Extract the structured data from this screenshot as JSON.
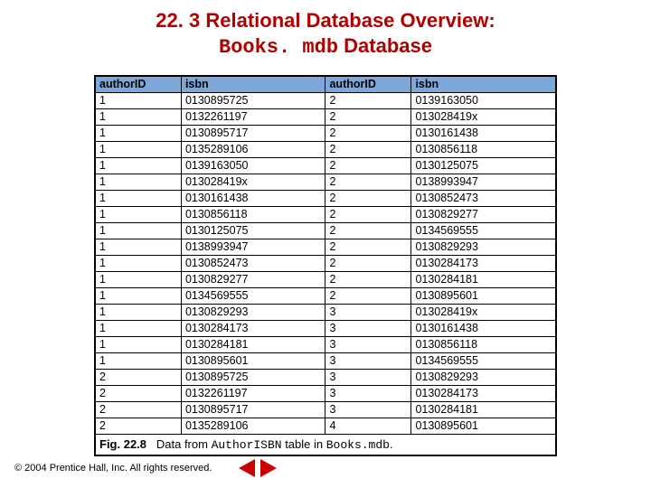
{
  "title": {
    "section": "22. 3",
    "line1_rest": "Relational Database Overview:",
    "line2_mono": "Books. mdb",
    "line2_rest": "Database"
  },
  "table": {
    "headers": [
      "authorID",
      "isbn",
      "authorID",
      "isbn"
    ],
    "rows": [
      [
        "1",
        "0130895725",
        "2",
        "0139163050"
      ],
      [
        "1",
        "0132261197",
        "2",
        "013028419x"
      ],
      [
        "1",
        "0130895717",
        "2",
        "0130161438"
      ],
      [
        "1",
        "0135289106",
        "2",
        "0130856118"
      ],
      [
        "1",
        "0139163050",
        "2",
        "0130125075"
      ],
      [
        "1",
        "013028419x",
        "2",
        "0138993947"
      ],
      [
        "1",
        "0130161438",
        "2",
        "0130852473"
      ],
      [
        "1",
        "0130856118",
        "2",
        "0130829277"
      ],
      [
        "1",
        "0130125075",
        "2",
        "0134569555"
      ],
      [
        "1",
        "0138993947",
        "2",
        "0130829293"
      ],
      [
        "1",
        "0130852473",
        "2",
        "0130284173"
      ],
      [
        "1",
        "0130829277",
        "2",
        "0130284181"
      ],
      [
        "1",
        "0134569555",
        "2",
        "0130895601"
      ],
      [
        "1",
        "0130829293",
        "3",
        "013028419x"
      ],
      [
        "1",
        "0130284173",
        "3",
        "0130161438"
      ],
      [
        "1",
        "0130284181",
        "3",
        "0130856118"
      ],
      [
        "1",
        "0130895601",
        "3",
        "0134569555"
      ],
      [
        "2",
        "0130895725",
        "3",
        "0130829293"
      ],
      [
        "2",
        "0132261197",
        "3",
        "0130284173"
      ],
      [
        "2",
        "0130895717",
        "3",
        "0130284181"
      ],
      [
        "2",
        "0135289106",
        "4",
        "0130895601"
      ]
    ],
    "caption": {
      "figno": "Fig. 22.8",
      "text_a": "Data from ",
      "mono_a": "AuthorISBN",
      "text_b": " table in ",
      "mono_b": "Books.mdb",
      "text_c": "."
    }
  },
  "footer": {
    "copyright": "© 2004 Prentice Hall, Inc.  All rights reserved."
  }
}
